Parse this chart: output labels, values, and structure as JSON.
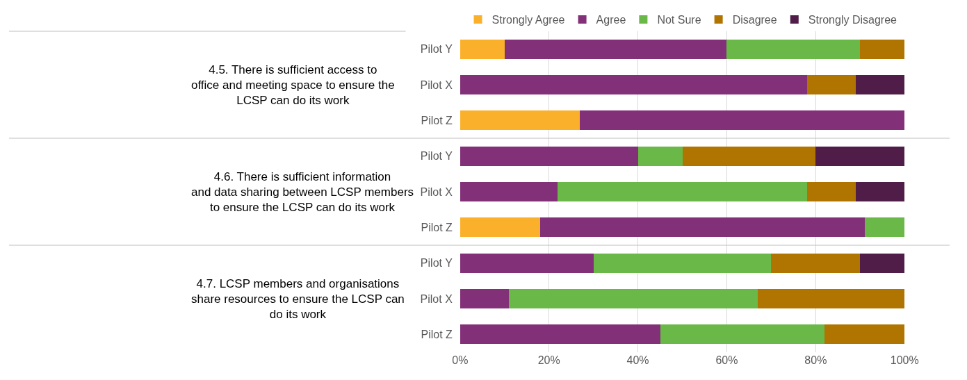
{
  "chart_data": {
    "type": "bar",
    "orientation": "horizontal",
    "stacked": true,
    "categories": [
      "Pilot Y",
      "Pilot X",
      "Pilot Z",
      "Pilot Y",
      "Pilot X",
      "Pilot Z",
      "Pilot Y",
      "Pilot X",
      "Pilot Z"
    ],
    "series": [
      {
        "name": "Strongly Agree",
        "color": "#fbb02c",
        "values": [
          10,
          0,
          27,
          0,
          0,
          18,
          0,
          0,
          0
        ]
      },
      {
        "name": "Agree",
        "color": "#823179",
        "values": [
          50,
          78,
          73,
          40,
          22,
          73,
          30,
          11,
          45
        ]
      },
      {
        "name": "Not Sure",
        "color": "#6ab847",
        "values": [
          30,
          0,
          0,
          10,
          56,
          9,
          40,
          56,
          37
        ]
      },
      {
        "name": "Disagree",
        "color": "#b07500",
        "values": [
          10,
          11,
          0,
          30,
          11,
          0,
          20,
          33,
          18
        ]
      },
      {
        "name": "Strongly Disagree",
        "color": "#4f1d48",
        "values": [
          0,
          11,
          0,
          20,
          11,
          0,
          10,
          0,
          0
        ]
      }
    ],
    "xlim": [
      0,
      100
    ],
    "xticks": [
      {
        "value": 0,
        "label": "0%"
      },
      {
        "value": 20,
        "label": "20%"
      },
      {
        "value": 40,
        "label": "40%"
      },
      {
        "value": 60,
        "label": "60%"
      },
      {
        "value": 80,
        "label": "80%"
      },
      {
        "value": 100,
        "label": "100%"
      }
    ],
    "grid": "x",
    "legend": "top",
    "annotations": [
      "4.5. There is sufficient access to office and meeting space to ensure the LCSP can do its work",
      "4.6. There is sufficient information and data sharing between LCSP members to ensure the LCSP can do its work",
      "4.7. LCSP members and organisations share resources to ensure the LCSP can do its work"
    ]
  }
}
